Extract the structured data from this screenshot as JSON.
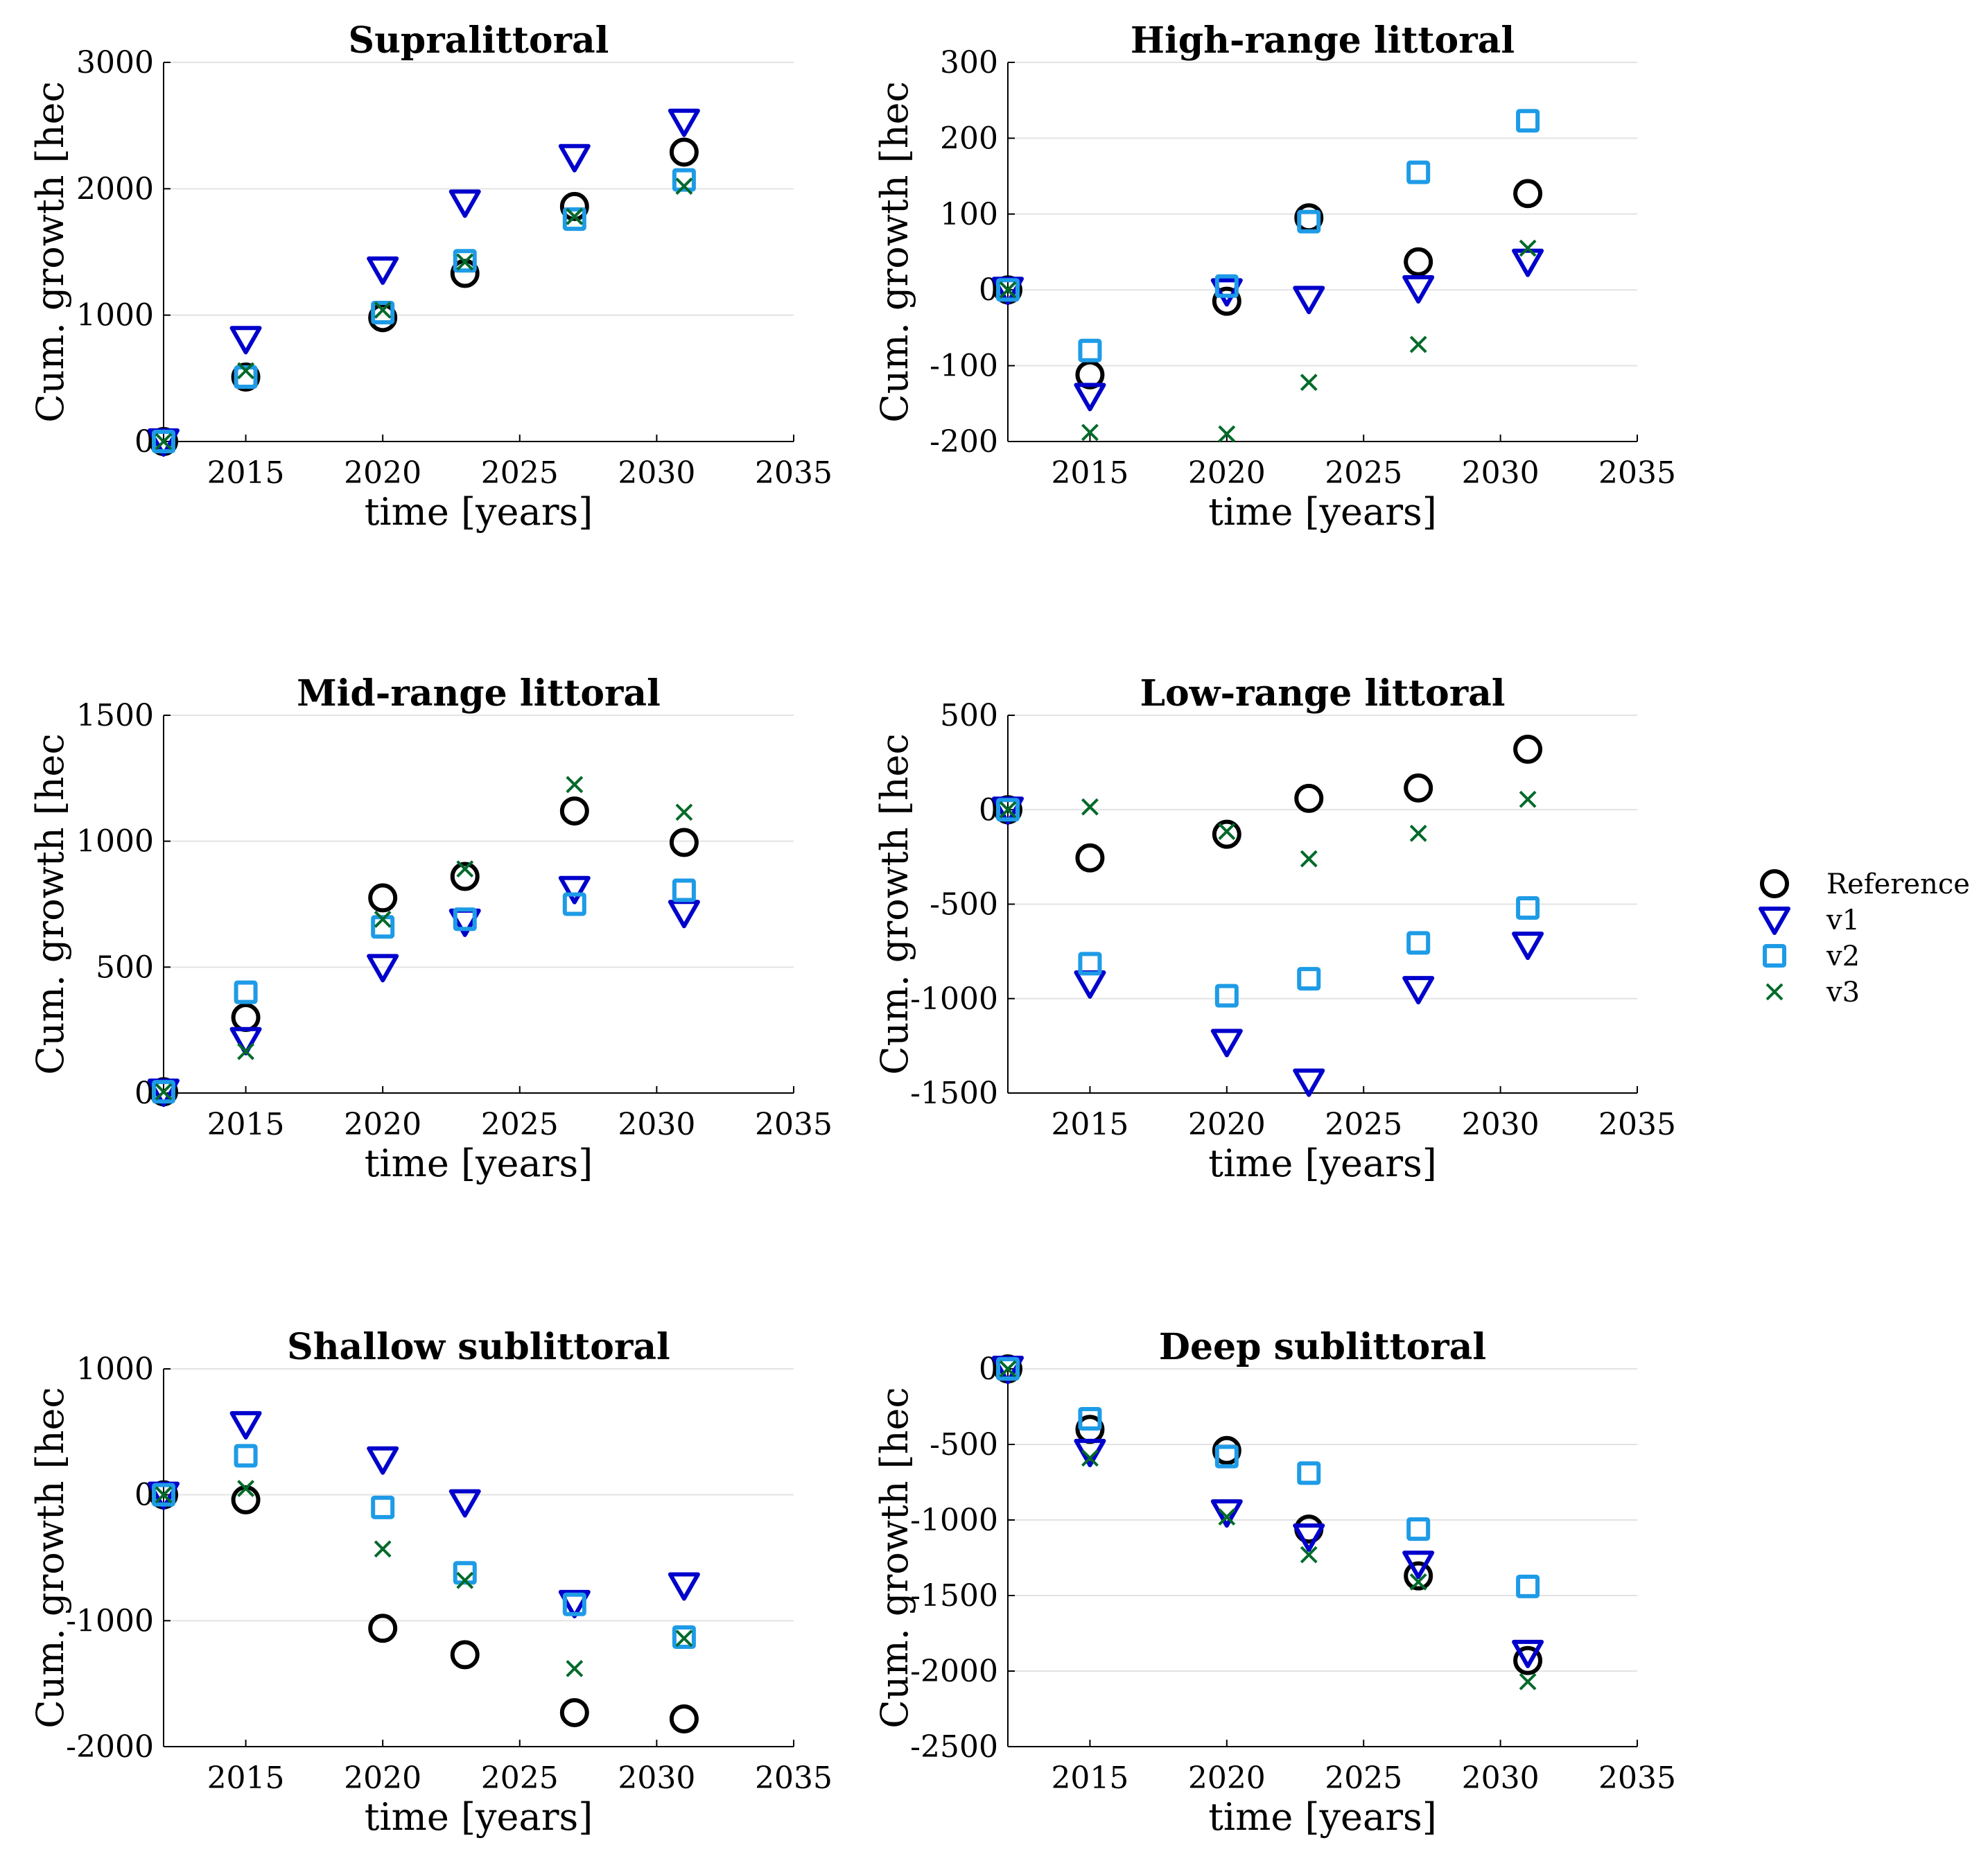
{
  "colors": {
    "reference": "#000000",
    "v1": "#0000cc",
    "v2": "#1e9be6",
    "v3": "#006a2a",
    "grid": "#e3e3e3"
  },
  "legend": [
    {
      "label": "Reference",
      "marker": "circle",
      "color": "#000000"
    },
    {
      "label": "v1",
      "marker": "triangle-down",
      "color": "#0000cc"
    },
    {
      "label": "v2",
      "marker": "square",
      "color": "#1e9be6"
    },
    {
      "label": "v3",
      "marker": "x",
      "color": "#006a2a"
    }
  ],
  "chart_data": [
    {
      "type": "scatter",
      "title": "Supralittoral",
      "xlabel": "time [years]",
      "ylabel": "Cum. growth [hec",
      "xlim": [
        2012,
        2035
      ],
      "ylim": [
        0,
        3000
      ],
      "xticks": [
        2015,
        2020,
        2025,
        2030,
        2035
      ],
      "yticks": [
        0,
        1000,
        2000,
        3000
      ],
      "ytick_labels": [
        "0",
        "1000",
        "2000",
        "3000"
      ],
      "x": [
        2012,
        2015,
        2020,
        2023,
        2027,
        2031
      ],
      "series": [
        {
          "name": "Reference",
          "values": [
            0,
            510,
            980,
            1330,
            1860,
            2290
          ]
        },
        {
          "name": "v1",
          "values": [
            0,
            810,
            1360,
            1890,
            2250,
            2530
          ]
        },
        {
          "name": "v2",
          "values": [
            0,
            510,
            1020,
            1430,
            1760,
            2070
          ]
        },
        {
          "name": "v3",
          "values": [
            0,
            560,
            1040,
            1420,
            1780,
            2020
          ]
        }
      ]
    },
    {
      "type": "scatter",
      "title": "High-range littoral",
      "xlabel": "time [years]",
      "ylabel": "Cum. growth [hec",
      "xlim": [
        2012,
        2035
      ],
      "ylim": [
        -200,
        300
      ],
      "xticks": [
        2015,
        2020,
        2025,
        2030,
        2035
      ],
      "yticks": [
        -200,
        -100,
        0,
        100,
        200,
        300
      ],
      "ytick_labels": [
        "-200",
        "-100",
        "0",
        "100",
        "200",
        "300"
      ],
      "x": [
        2012,
        2015,
        2020,
        2023,
        2027,
        2031
      ],
      "series": [
        {
          "name": "Reference",
          "values": [
            0,
            -112,
            -15,
            95,
            37,
            127
          ]
        },
        {
          "name": "v1",
          "values": [
            0,
            -140,
            -2,
            -12,
            2,
            37
          ]
        },
        {
          "name": "v2",
          "values": [
            0,
            -80,
            5,
            90,
            155,
            223
          ]
        },
        {
          "name": "v3",
          "values": [
            0,
            -188,
            -190,
            -122,
            -72,
            55
          ]
        }
      ]
    },
    {
      "type": "scatter",
      "title": "Mid-range littoral",
      "xlabel": "time [years]",
      "ylabel": "Cum. growth [hec",
      "xlim": [
        2012,
        2035
      ],
      "ylim": [
        0,
        1500
      ],
      "xticks": [
        2015,
        2020,
        2025,
        2030,
        2035
      ],
      "yticks": [
        0,
        500,
        1000,
        1500
      ],
      "ytick_labels": [
        "0",
        "500",
        "1000",
        "1500"
      ],
      "x": [
        2012,
        2015,
        2020,
        2023,
        2027,
        2031
      ],
      "series": [
        {
          "name": "Reference",
          "values": [
            5,
            300,
            775,
            860,
            1120,
            995
          ]
        },
        {
          "name": "v1",
          "values": [
            5,
            210,
            500,
            680,
            810,
            715
          ]
        },
        {
          "name": "v2",
          "values": [
            5,
            400,
            660,
            690,
            750,
            805
          ]
        },
        {
          "name": "v3",
          "values": [
            5,
            165,
            690,
            890,
            1225,
            1115
          ]
        }
      ]
    },
    {
      "type": "scatter",
      "title": "Low-range littoral",
      "xlabel": "time [years]",
      "ylabel": "Cum. growth [hec",
      "xlim": [
        2012,
        2035
      ],
      "ylim": [
        -1500,
        500
      ],
      "xticks": [
        2015,
        2020,
        2025,
        2030,
        2035
      ],
      "yticks": [
        -1500,
        -1000,
        -500,
        0,
        500
      ],
      "ytick_labels": [
        "-1500",
        "-1000",
        "-500",
        "0",
        "500"
      ],
      "x": [
        2012,
        2015,
        2020,
        2023,
        2027,
        2031
      ],
      "series": [
        {
          "name": "Reference",
          "values": [
            0,
            -255,
            -130,
            60,
            115,
            320
          ]
        },
        {
          "name": "v1",
          "values": [
            0,
            -920,
            -1230,
            -1440,
            -950,
            -715
          ]
        },
        {
          "name": "v2",
          "values": [
            0,
            -815,
            -985,
            -895,
            -705,
            -520
          ]
        },
        {
          "name": "v3",
          "values": [
            0,
            15,
            -115,
            -260,
            -125,
            55
          ]
        }
      ]
    },
    {
      "type": "scatter",
      "title": "Shallow sublittoral",
      "xlabel": "time [years]",
      "ylabel": "Cum. growth [hec",
      "xlim": [
        2012,
        2035
      ],
      "ylim": [
        -2000,
        1000
      ],
      "xticks": [
        2015,
        2020,
        2025,
        2030,
        2035
      ],
      "yticks": [
        -2000,
        -1000,
        0,
        1000
      ],
      "ytick_labels": [
        "-2000",
        "-1000",
        "0",
        "1000"
      ],
      "x": [
        2012,
        2015,
        2020,
        2023,
        2027,
        2031
      ],
      "series": [
        {
          "name": "Reference",
          "values": [
            0,
            -40,
            -1060,
            -1270,
            -1730,
            -1780
          ]
        },
        {
          "name": "v1",
          "values": [
            0,
            560,
            280,
            -60,
            -860,
            -720
          ]
        },
        {
          "name": "v2",
          "values": [
            0,
            310,
            -100,
            -620,
            -870,
            -1130
          ]
        },
        {
          "name": "v3",
          "values": [
            0,
            50,
            -430,
            -680,
            -1380,
            -1140
          ]
        }
      ]
    },
    {
      "type": "scatter",
      "title": "Deep sublittoral",
      "xlabel": "time [years]",
      "ylabel": "Cum. growth [hec",
      "xlim": [
        2012,
        2035
      ],
      "ylim": [
        -2500,
        0
      ],
      "xticks": [
        2015,
        2020,
        2025,
        2030,
        2035
      ],
      "yticks": [
        -2500,
        -2000,
        -1500,
        -1000,
        -500,
        0
      ],
      "ytick_labels": [
        "-2500",
        "-2000",
        "-1500",
        "-1000",
        "-500",
        "0"
      ],
      "x": [
        2012,
        2015,
        2020,
        2023,
        2027,
        2031
      ],
      "series": [
        {
          "name": "Reference",
          "values": [
            0,
            -400,
            -540,
            -1060,
            -1370,
            -1930
          ]
        },
        {
          "name": "v1",
          "values": [
            0,
            -550,
            -950,
            -1110,
            -1290,
            -1880
          ]
        },
        {
          "name": "v2",
          "values": [
            0,
            -330,
            -580,
            -690,
            -1060,
            -1440
          ]
        },
        {
          "name": "v3",
          "values": [
            0,
            -590,
            -980,
            -1230,
            -1410,
            -2070
          ]
        }
      ]
    }
  ]
}
